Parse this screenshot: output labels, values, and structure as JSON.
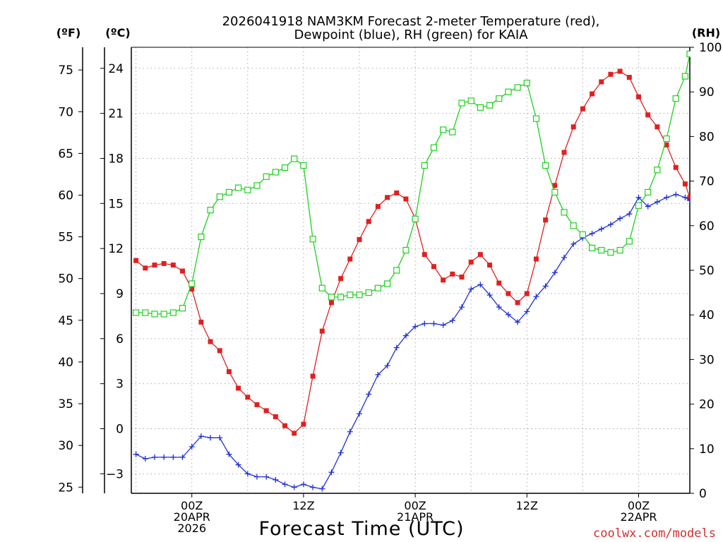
{
  "chart_data": {
    "type": "line",
    "title_line1": "2026041918 NAM3KM Forecast 2-meter Temperature (red),",
    "title_line2": "Dewpoint (blue), RH (green) for KAIA",
    "xlabel": "Forecast Time (UTC)",
    "credit": "coolwx.com/models",
    "units": {
      "fahrenheit": "(ºF)",
      "celsius": "(ºC)",
      "rh": "(RH)"
    },
    "x_range_hours": [
      -6.5,
      53.5
    ],
    "y_celsius_range": [
      -4.3,
      25.4
    ],
    "rh_range": [
      0,
      100
    ],
    "celsius_ticks": [
      "24",
      "21",
      "18",
      "15",
      "12",
      "9",
      "6",
      "3",
      "0",
      "−3"
    ],
    "fahrenheit_ticks": [
      "75",
      "70",
      "65",
      "60",
      "55",
      "50",
      "45",
      "40",
      "35",
      "30",
      "25"
    ],
    "rh_ticks": [
      "100",
      "90",
      "80",
      "70",
      "60",
      "50",
      "40",
      "30",
      "20",
      "10",
      "0"
    ],
    "x_ticks": [
      {
        "hour": 0,
        "lines": [
          "00Z",
          "20APR",
          "2026"
        ]
      },
      {
        "hour": 12,
        "lines": [
          "12Z"
        ]
      },
      {
        "hour": 24,
        "lines": [
          "00Z",
          "21APR"
        ]
      },
      {
        "hour": 36,
        "lines": [
          "12Z"
        ]
      },
      {
        "hour": 48,
        "lines": [
          "00Z",
          "22APR"
        ]
      }
    ],
    "colors": {
      "temperature": "#e02020",
      "dewpoint": "#2030d8",
      "rh": "#20d020",
      "grid": "#aaaaaa"
    },
    "series": [
      {
        "name": "Temperature",
        "unit": "C",
        "marker": "filled-square",
        "values": [
          [
            -6,
            11.2
          ],
          [
            -5,
            10.7
          ],
          [
            -4,
            10.9
          ],
          [
            -3,
            11.0
          ],
          [
            -2,
            10.9
          ],
          [
            -1,
            10.5
          ],
          [
            0,
            9.3
          ],
          [
            1,
            7.1
          ],
          [
            2,
            5.8
          ],
          [
            3,
            5.2
          ],
          [
            4,
            3.8
          ],
          [
            5,
            2.7
          ],
          [
            6,
            2.1
          ],
          [
            7,
            1.6
          ],
          [
            8,
            1.2
          ],
          [
            9,
            0.8
          ],
          [
            10,
            0.2
          ],
          [
            11,
            -0.3
          ],
          [
            12,
            0.3
          ],
          [
            13,
            3.5
          ],
          [
            14,
            6.5
          ],
          [
            15,
            8.4
          ],
          [
            16,
            10.0
          ],
          [
            17,
            11.3
          ],
          [
            18,
            12.6
          ],
          [
            19,
            13.8
          ],
          [
            20,
            14.8
          ],
          [
            21,
            15.4
          ],
          [
            22,
            15.7
          ],
          [
            23,
            15.3
          ],
          [
            24,
            14.0
          ],
          [
            25,
            11.6
          ],
          [
            26,
            10.8
          ],
          [
            27,
            9.9
          ],
          [
            28,
            10.3
          ],
          [
            29,
            10.1
          ],
          [
            30,
            11.1
          ],
          [
            31,
            11.6
          ],
          [
            32,
            10.9
          ],
          [
            33,
            9.7
          ],
          [
            34,
            9.0
          ],
          [
            35,
            8.4
          ],
          [
            36,
            9.0
          ],
          [
            37,
            11.3
          ],
          [
            38,
            13.9
          ],
          [
            39,
            16.2
          ],
          [
            40,
            18.4
          ],
          [
            41,
            20.1
          ],
          [
            42,
            21.3
          ],
          [
            43,
            22.3
          ],
          [
            44,
            23.1
          ],
          [
            45,
            23.6
          ],
          [
            46,
            23.8
          ],
          [
            47,
            23.4
          ],
          [
            48,
            22.1
          ],
          [
            49,
            20.9
          ],
          [
            50,
            20.1
          ],
          [
            51,
            18.9
          ],
          [
            52,
            17.4
          ],
          [
            53,
            16.3
          ],
          [
            53.5,
            15.4
          ]
        ]
      },
      {
        "name": "Dewpoint",
        "unit": "C",
        "marker": "plus",
        "values": [
          [
            -6,
            -1.7
          ],
          [
            -5,
            -2.0
          ],
          [
            -4,
            -1.9
          ],
          [
            -3,
            -1.9
          ],
          [
            -2,
            -1.9
          ],
          [
            -1,
            -1.9
          ],
          [
            0,
            -1.2
          ],
          [
            1,
            -0.5
          ],
          [
            2,
            -0.6
          ],
          [
            3,
            -0.6
          ],
          [
            4,
            -1.7
          ],
          [
            5,
            -2.4
          ],
          [
            6,
            -3.0
          ],
          [
            7,
            -3.2
          ],
          [
            8,
            -3.2
          ],
          [
            9,
            -3.4
          ],
          [
            10,
            -3.7
          ],
          [
            11,
            -3.9
          ],
          [
            12,
            -3.7
          ],
          [
            13,
            -3.9
          ],
          [
            14,
            -4.0
          ],
          [
            15,
            -2.9
          ],
          [
            16,
            -1.6
          ],
          [
            17,
            -0.2
          ],
          [
            18,
            1.0
          ],
          [
            19,
            2.3
          ],
          [
            20,
            3.6
          ],
          [
            21,
            4.2
          ],
          [
            22,
            5.4
          ],
          [
            23,
            6.2
          ],
          [
            24,
            6.8
          ],
          [
            25,
            7.0
          ],
          [
            26,
            7.0
          ],
          [
            27,
            6.9
          ],
          [
            28,
            7.2
          ],
          [
            29,
            8.1
          ],
          [
            30,
            9.3
          ],
          [
            31,
            9.6
          ],
          [
            32,
            8.9
          ],
          [
            33,
            8.1
          ],
          [
            34,
            7.6
          ],
          [
            35,
            7.1
          ],
          [
            36,
            7.8
          ],
          [
            37,
            8.8
          ],
          [
            38,
            9.5
          ],
          [
            39,
            10.4
          ],
          [
            40,
            11.4
          ],
          [
            41,
            12.3
          ],
          [
            42,
            12.7
          ],
          [
            43,
            13.0
          ],
          [
            44,
            13.3
          ],
          [
            45,
            13.6
          ],
          [
            46,
            14.0
          ],
          [
            47,
            14.3
          ],
          [
            48,
            15.4
          ],
          [
            49,
            14.8
          ],
          [
            50,
            15.1
          ],
          [
            51,
            15.4
          ],
          [
            52,
            15.6
          ],
          [
            53,
            15.4
          ],
          [
            53.5,
            15.2
          ]
        ]
      },
      {
        "name": "RH",
        "unit": "%",
        "marker": "open-square",
        "values": [
          [
            -6,
            40.5
          ],
          [
            -5,
            40.5
          ],
          [
            -4,
            40.2
          ],
          [
            -3,
            40.2
          ],
          [
            -2,
            40.5
          ],
          [
            -1,
            41.5
          ],
          [
            0,
            47
          ],
          [
            1,
            57.5
          ],
          [
            2,
            63.5
          ],
          [
            3,
            66.5
          ],
          [
            4,
            67.5
          ],
          [
            5,
            68.5
          ],
          [
            6,
            68
          ],
          [
            7,
            69
          ],
          [
            8,
            71
          ],
          [
            9,
            72
          ],
          [
            10,
            73
          ],
          [
            11,
            75
          ],
          [
            12,
            73.5
          ],
          [
            13,
            57
          ],
          [
            14,
            46
          ],
          [
            15,
            44
          ],
          [
            16,
            44
          ],
          [
            17,
            44.5
          ],
          [
            18,
            44.5
          ],
          [
            19,
            45
          ],
          [
            20,
            46
          ],
          [
            21,
            47
          ],
          [
            22,
            50
          ],
          [
            23,
            54.5
          ],
          [
            24,
            61.5
          ],
          [
            25,
            73.5
          ],
          [
            26,
            77.5
          ],
          [
            27,
            81.5
          ],
          [
            28,
            81
          ],
          [
            29,
            87.5
          ],
          [
            30,
            88
          ],
          [
            31,
            86.5
          ],
          [
            32,
            87
          ],
          [
            33,
            88.5
          ],
          [
            34,
            90
          ],
          [
            35,
            91
          ],
          [
            36,
            92
          ],
          [
            37,
            84
          ],
          [
            38,
            73.5
          ],
          [
            39,
            67.5
          ],
          [
            40,
            63
          ],
          [
            41,
            60
          ],
          [
            42,
            58
          ],
          [
            43,
            55
          ],
          [
            44,
            54.5
          ],
          [
            45,
            54
          ],
          [
            46,
            54.5
          ],
          [
            47,
            56.5
          ],
          [
            48,
            64.5
          ],
          [
            49,
            67.5
          ],
          [
            50,
            72.5
          ],
          [
            51,
            79.5
          ],
          [
            52,
            88.5
          ],
          [
            53,
            93.5
          ],
          [
            53.5,
            98.5
          ]
        ]
      }
    ]
  }
}
